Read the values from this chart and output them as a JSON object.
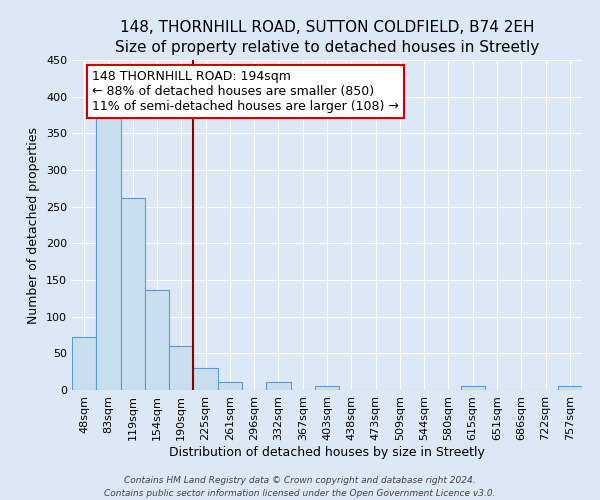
{
  "title": "148, THORNHILL ROAD, SUTTON COLDFIELD, B74 2EH",
  "subtitle": "Size of property relative to detached houses in Streetly",
  "xlabel": "Distribution of detached houses by size in Streetly",
  "ylabel": "Number of detached properties",
  "bin_labels": [
    "48sqm",
    "83sqm",
    "119sqm",
    "154sqm",
    "190sqm",
    "225sqm",
    "261sqm",
    "296sqm",
    "332sqm",
    "367sqm",
    "403sqm",
    "438sqm",
    "473sqm",
    "509sqm",
    "544sqm",
    "580sqm",
    "615sqm",
    "651sqm",
    "686sqm",
    "722sqm",
    "757sqm"
  ],
  "bar_heights": [
    72,
    378,
    262,
    137,
    60,
    30,
    11,
    0,
    11,
    0,
    5,
    0,
    0,
    0,
    0,
    0,
    5,
    0,
    0,
    0,
    5
  ],
  "bar_color": "#c9dff0",
  "bar_edge_color": "#5b9bd5",
  "vline_x_index": 4,
  "vline_color": "#8B0000",
  "annotation_line1": "148 THORNHILL ROAD: 194sqm",
  "annotation_line2": "← 88% of detached houses are smaller (850)",
  "annotation_line3": "11% of semi-detached houses are larger (108) →",
  "annotation_box_color": "#ffffff",
  "annotation_box_edge": "#cc0000",
  "ylim": [
    0,
    450
  ],
  "yticks": [
    0,
    50,
    100,
    150,
    200,
    250,
    300,
    350,
    400,
    450
  ],
  "footer1": "Contains HM Land Registry data © Crown copyright and database right 2024.",
  "footer2": "Contains public sector information licensed under the Open Government Licence v3.0.",
  "background_color": "#dce8f5",
  "plot_background": "#dce8f5",
  "grid_color": "#ffffff",
  "title_fontsize": 11,
  "subtitle_fontsize": 10,
  "axis_label_fontsize": 9,
  "tick_fontsize": 8,
  "annotation_fontsize": 9
}
